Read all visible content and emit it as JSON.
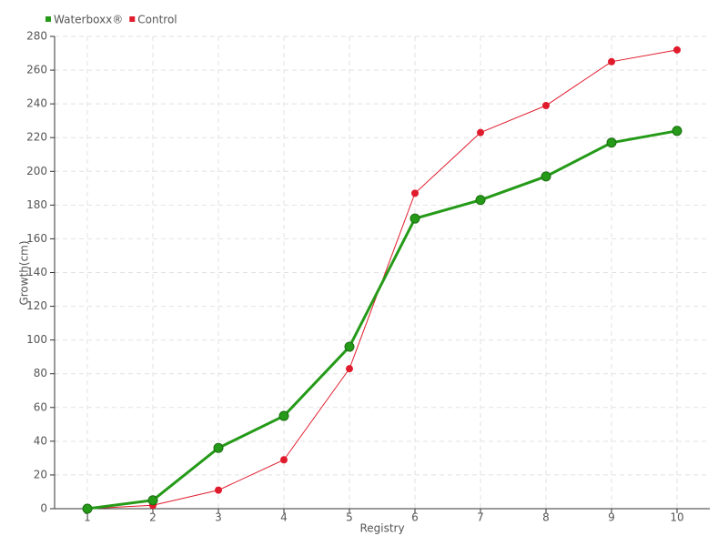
{
  "chart_data": {
    "type": "line",
    "x_label": "Registry",
    "y_label": "Growth(cm)",
    "x": [
      1,
      2,
      3,
      4,
      5,
      6,
      7,
      8,
      9,
      10
    ],
    "xlim": [
      0.5,
      10.5
    ],
    "xticks": [
      1,
      2,
      3,
      4,
      5,
      6,
      7,
      8,
      9,
      10
    ],
    "ylim": [
      0,
      280
    ],
    "yticks": [
      0,
      20,
      40,
      60,
      80,
      100,
      120,
      140,
      160,
      180,
      200,
      220,
      240,
      260,
      280
    ],
    "grid": true,
    "legend": "top-left",
    "series": [
      {
        "name": "Waterboxx®",
        "color": "#259a18",
        "values": [
          0,
          5,
          36,
          55,
          96,
          172,
          183,
          197,
          217,
          224
        ]
      },
      {
        "name": "Control",
        "color": "#e01b2c",
        "values": [
          0,
          2,
          11,
          29,
          83,
          187,
          223,
          239,
          265,
          272
        ]
      }
    ]
  }
}
